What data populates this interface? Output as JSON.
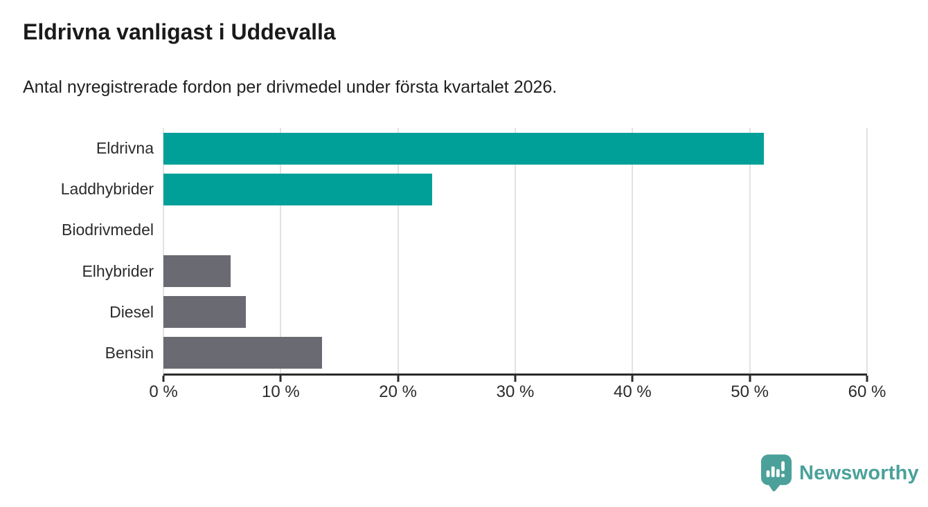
{
  "title": "Eldrivna vanligast i Uddevalla",
  "subtitle": "Antal nyregistrerade fordon per drivmedel under första kvartalet 2026.",
  "colors": {
    "accent_teal": "#00A099",
    "bar_gray": "#6A6A72",
    "title_text": "#1A1A1A",
    "axis_text": "#2B2B2B",
    "gridline": "#E2E2E2",
    "axis_line": "#2B2B2B",
    "logo_teal": "#4BA19A",
    "background": "#FFFFFF"
  },
  "chart_data": {
    "type": "bar",
    "orientation": "horizontal",
    "title": "Eldrivna vanligast i Uddevalla",
    "subtitle": "Antal nyregistrerade fordon per drivmedel under första kvartalet 2026.",
    "categories": [
      "Eldrivna",
      "Laddhybrider",
      "Biodrivmedel",
      "Elhybrider",
      "Diesel",
      "Bensin"
    ],
    "values": [
      51.2,
      22.9,
      0,
      5.7,
      7.0,
      13.5
    ],
    "unit": "%",
    "bar_colors": [
      "#00A099",
      "#00A099",
      "#6A6A72",
      "#6A6A72",
      "#6A6A72",
      "#6A6A72"
    ],
    "xlabel": "",
    "ylabel": "",
    "xlim": [
      0,
      60
    ],
    "x_ticks": [
      0,
      10,
      20,
      30,
      40,
      50,
      60
    ],
    "x_tick_labels": [
      "0 %",
      "10 %",
      "20 %",
      "30 %",
      "40 %",
      "50 %",
      "60 %"
    ],
    "grid": "vertical",
    "legend": "none"
  },
  "footer": {
    "brand": "Newsworthy",
    "logo_icon": "bar-chart-speech-bubble-icon"
  }
}
